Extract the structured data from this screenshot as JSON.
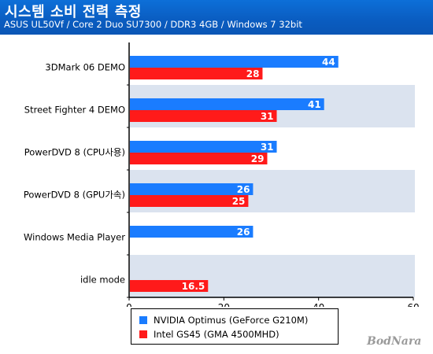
{
  "header": {
    "title": "시스템 소비 전력 측정",
    "subtitle": "ASUS UL50Vf / Core 2 Duo SU7300 / DDR3 4GB / Windows 7 32bit"
  },
  "chart_data": {
    "type": "bar",
    "orientation": "horizontal",
    "categories": [
      "3DMark 06 DEMO",
      "Street Fighter 4 DEMO",
      "PowerDVD 8 (CPU사용)",
      "PowerDVD 8 (GPU가속)",
      "Windows Media Player",
      "idle mode"
    ],
    "series": [
      {
        "name": "NVIDIA Optimus (GeForce G210M)",
        "color": "#1a7cff",
        "values": [
          44,
          41,
          31,
          26,
          26,
          null
        ]
      },
      {
        "name": "Intel GS45 (GMA 4500MHD)",
        "color": "#ff1a1a",
        "values": [
          28,
          31,
          29,
          25,
          null,
          16.5
        ]
      }
    ],
    "xlim": [
      0,
      60
    ],
    "xticks": [
      0,
      20,
      40,
      60
    ],
    "grid": false,
    "alternating_band_color": "#dbe3ef",
    "legend_position": "bottom"
  },
  "watermark": "BodNara"
}
